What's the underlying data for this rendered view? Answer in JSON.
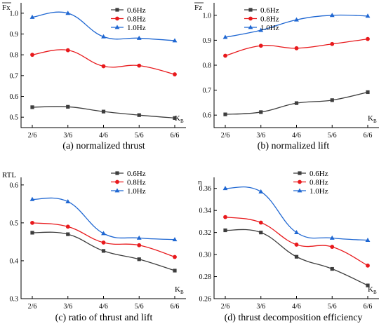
{
  "chart_data": [
    {
      "type": "line",
      "caption": "(a) normalized thrust",
      "ylabel": "Fx",
      "ylabel_overline": true,
      "xlabel": "K",
      "xlabel_sub": "B",
      "categories": [
        "2/6",
        "3/6",
        "4/6",
        "5/6",
        "6/6"
      ],
      "ylim": [
        0.45,
        1.05
      ],
      "yticks": [
        "0.5",
        "0.6",
        "0.7",
        "0.8",
        "0.9",
        "1.0"
      ],
      "ytick_values": [
        0.5,
        0.6,
        0.7,
        0.8,
        0.9,
        1.0
      ],
      "legend": "top-right",
      "series": [
        {
          "name": "0.6Hz",
          "values": [
            0.548,
            0.55,
            0.527,
            0.51,
            0.496
          ],
          "color": "#3d3d3d",
          "marker": "square"
        },
        {
          "name": "0.8Hz",
          "values": [
            0.8,
            0.822,
            0.745,
            0.748,
            0.706
          ],
          "color": "#e8191c",
          "marker": "circle"
        },
        {
          "name": "1.0Hz",
          "values": [
            0.981,
            1.0,
            0.887,
            0.88,
            0.868
          ],
          "color": "#1f67d2",
          "marker": "triangle"
        }
      ]
    },
    {
      "type": "line",
      "caption": "(b) normalized lift",
      "ylabel": "Fz",
      "ylabel_overline": true,
      "xlabel": "K",
      "xlabel_sub": "B",
      "categories": [
        "2/6",
        "3/6",
        "4/6",
        "5/6",
        "6/6"
      ],
      "ylim": [
        0.55,
        1.05
      ],
      "yticks": [
        "0.6",
        "0.7",
        "0.8",
        "0.9",
        "1.0"
      ],
      "ytick_values": [
        0.6,
        0.7,
        0.8,
        0.9,
        1.0
      ],
      "legend": "top-left",
      "series": [
        {
          "name": "0.6Hz",
          "values": [
            0.603,
            0.612,
            0.648,
            0.66,
            0.692
          ],
          "color": "#3d3d3d",
          "marker": "square"
        },
        {
          "name": "0.8Hz",
          "values": [
            0.838,
            0.878,
            0.868,
            0.885,
            0.905
          ],
          "color": "#e8191c",
          "marker": "circle"
        },
        {
          "name": "1.0Hz",
          "values": [
            0.912,
            0.94,
            0.982,
            1.0,
            0.997
          ],
          "color": "#1f67d2",
          "marker": "triangle"
        }
      ]
    },
    {
      "type": "line",
      "caption": "(c) ratio of thrust and lift",
      "ylabel": "RTL",
      "ylabel_overline": false,
      "xlabel": "K",
      "xlabel_sub": "B",
      "categories": [
        "2/6",
        "3/6",
        "4/6",
        "5/6",
        "6/6"
      ],
      "ylim": [
        0.3,
        0.62
      ],
      "yticks": [
        "0.3",
        "0.4",
        "0.5",
        "0.6"
      ],
      "ytick_values": [
        0.3,
        0.4,
        0.5,
        0.6
      ],
      "legend": "top-right",
      "series": [
        {
          "name": "0.6Hz",
          "values": [
            0.474,
            0.47,
            0.426,
            0.404,
            0.374
          ],
          "color": "#3d3d3d",
          "marker": "square"
        },
        {
          "name": "0.8Hz",
          "values": [
            0.5,
            0.49,
            0.448,
            0.441,
            0.41
          ],
          "color": "#e8191c",
          "marker": "circle"
        },
        {
          "name": "1.0Hz",
          "values": [
            0.562,
            0.556,
            0.472,
            0.46,
            0.456
          ],
          "color": "#1f67d2",
          "marker": "triangle"
        }
      ]
    },
    {
      "type": "line",
      "caption": "(d) thrust decomposition efficiency",
      "ylabel": "η",
      "ylabel_overline": false,
      "xlabel": "K",
      "xlabel_sub": "B",
      "categories": [
        "2/6",
        "3/6",
        "4/6",
        "5/6",
        "6/6"
      ],
      "ylim": [
        0.26,
        0.37
      ],
      "yticks": [
        "0.26",
        "0.28",
        "0.30",
        "0.32",
        "0.34",
        "0.36"
      ],
      "ytick_values": [
        0.26,
        0.28,
        0.3,
        0.32,
        0.34,
        0.36
      ],
      "legend": "top-right",
      "series": [
        {
          "name": "0.6Hz",
          "values": [
            0.322,
            0.32,
            0.298,
            0.287,
            0.272
          ],
          "color": "#3d3d3d",
          "marker": "square"
        },
        {
          "name": "0.8Hz",
          "values": [
            0.334,
            0.329,
            0.309,
            0.307,
            0.29
          ],
          "color": "#e8191c",
          "marker": "circle"
        },
        {
          "name": "1.0Hz",
          "values": [
            0.36,
            0.357,
            0.32,
            0.315,
            0.313
          ],
          "color": "#1f67d2",
          "marker": "triangle"
        }
      ]
    }
  ]
}
